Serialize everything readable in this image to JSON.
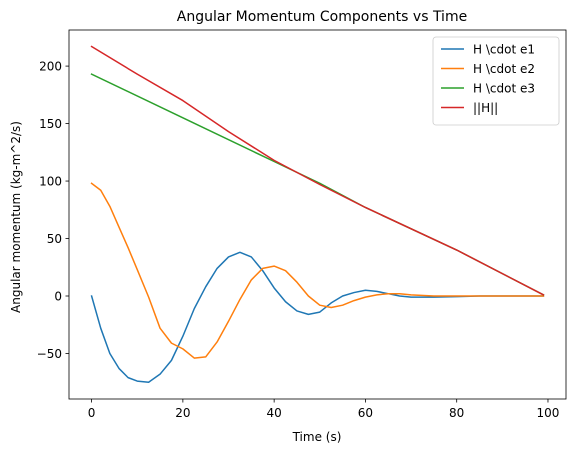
{
  "chart_data": {
    "type": "line",
    "title": "Angular Momentum Components vs Time",
    "xlabel": "Time (s)",
    "ylabel": "Angular momentum (kg-m^2/s)",
    "xlim": [
      -4.95,
      103.95
    ],
    "ylim": [
      -89.6,
      231.4
    ],
    "xticks": [
      0,
      20,
      40,
      60,
      80,
      100
    ],
    "yticks": [
      -50,
      0,
      50,
      100,
      150,
      200
    ],
    "grid": false,
    "legend_position": "top-right",
    "series": [
      {
        "name": "H \\cdot e1",
        "color": "#1f77b4",
        "x": [
          0,
          2,
          4,
          6,
          8,
          10,
          12.5,
          15,
          17.5,
          20,
          22.5,
          25,
          27.5,
          30,
          32.5,
          35,
          37.5,
          40,
          42.5,
          45,
          47.5,
          50,
          52.5,
          55,
          57.5,
          60,
          62.5,
          65,
          67.5,
          70,
          75,
          80,
          85,
          90,
          95,
          99
        ],
        "y": [
          0,
          -28,
          -50,
          -63,
          -71,
          -74,
          -75,
          -68,
          -56,
          -35,
          -11,
          8,
          24,
          34,
          38,
          34,
          22,
          7,
          -5,
          -13,
          -16,
          -14,
          -6,
          0,
          3,
          5,
          4,
          2,
          0,
          -1,
          -1,
          -0.5,
          0,
          0,
          0,
          0
        ]
      },
      {
        "name": "H \\cdot e2",
        "color": "#ff7f0e",
        "x": [
          0,
          2,
          4,
          6,
          8,
          10,
          12.5,
          15,
          17.5,
          20,
          22.5,
          25,
          27.5,
          30,
          32.5,
          35,
          37.5,
          40,
          42.5,
          45,
          47.5,
          50,
          52.5,
          55,
          57.5,
          60,
          62.5,
          65,
          67.5,
          70,
          75,
          80,
          85,
          90,
          95,
          99
        ],
        "y": [
          98,
          92,
          78,
          60,
          42,
          23,
          -1,
          -28,
          -41,
          -46,
          -54,
          -53,
          -40,
          -22,
          -3,
          14,
          24,
          26,
          22,
          12,
          0,
          -8,
          -10,
          -8,
          -4,
          -1,
          1,
          2,
          2,
          1,
          0,
          0,
          0,
          0,
          0,
          0
        ]
      },
      {
        "name": "H \\cdot e3",
        "color": "#2ca02c",
        "x": [
          0,
          20,
          40,
          50,
          60,
          80,
          99
        ],
        "y": [
          193,
          155,
          117,
          98,
          77,
          40,
          1
        ]
      },
      {
        "name": "||H||",
        "color": "#d62728",
        "x": [
          0,
          10,
          20,
          30,
          40,
          50,
          60,
          80,
          99
        ],
        "y": [
          217,
          193,
          170,
          143,
          118,
          97,
          77,
          40,
          1
        ]
      }
    ]
  }
}
